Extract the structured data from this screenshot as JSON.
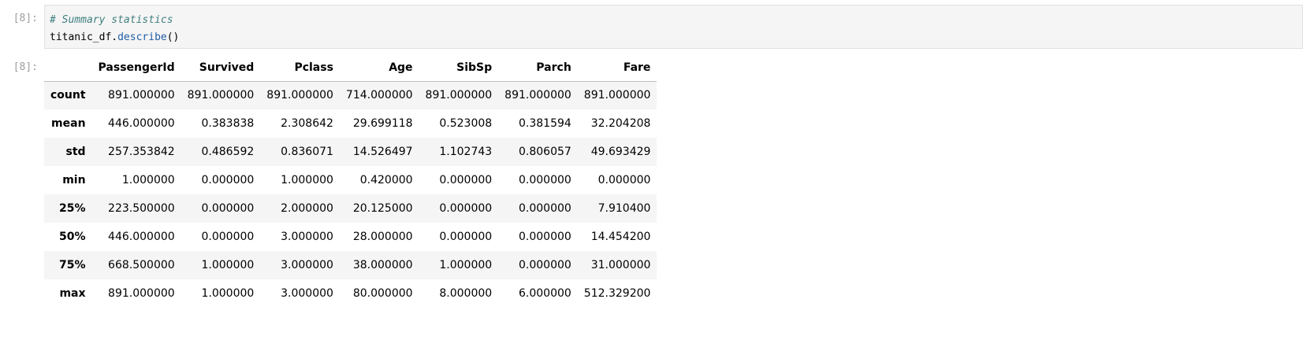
{
  "input_cell": {
    "prompt": "[8]:",
    "code_comment": "# Summary statistics",
    "code_object": "titanic_df",
    "code_dot": ".",
    "code_method": "describe",
    "code_parens": "()"
  },
  "output_cell": {
    "prompt": "[8]:",
    "table": {
      "index_header": "",
      "columns": [
        "PassengerId",
        "Survived",
        "Pclass",
        "Age",
        "SibSp",
        "Parch",
        "Fare"
      ],
      "rows": [
        {
          "label": "count",
          "values": [
            "891.000000",
            "891.000000",
            "891.000000",
            "714.000000",
            "891.000000",
            "891.000000",
            "891.000000"
          ]
        },
        {
          "label": "mean",
          "values": [
            "446.000000",
            "0.383838",
            "2.308642",
            "29.699118",
            "0.523008",
            "0.381594",
            "32.204208"
          ]
        },
        {
          "label": "std",
          "values": [
            "257.353842",
            "0.486592",
            "0.836071",
            "14.526497",
            "1.102743",
            "0.806057",
            "49.693429"
          ]
        },
        {
          "label": "min",
          "values": [
            "1.000000",
            "0.000000",
            "1.000000",
            "0.420000",
            "0.000000",
            "0.000000",
            "0.000000"
          ]
        },
        {
          "label": "25%",
          "values": [
            "223.500000",
            "0.000000",
            "2.000000",
            "20.125000",
            "0.000000",
            "0.000000",
            "7.910400"
          ]
        },
        {
          "label": "50%",
          "values": [
            "446.000000",
            "0.000000",
            "3.000000",
            "28.000000",
            "0.000000",
            "0.000000",
            "14.454200"
          ]
        },
        {
          "label": "75%",
          "values": [
            "668.500000",
            "1.000000",
            "3.000000",
            "38.000000",
            "1.000000",
            "0.000000",
            "31.000000"
          ]
        },
        {
          "label": "max",
          "values": [
            "891.000000",
            "1.000000",
            "3.000000",
            "80.000000",
            "8.000000",
            "6.000000",
            "512.329200"
          ]
        }
      ]
    }
  }
}
